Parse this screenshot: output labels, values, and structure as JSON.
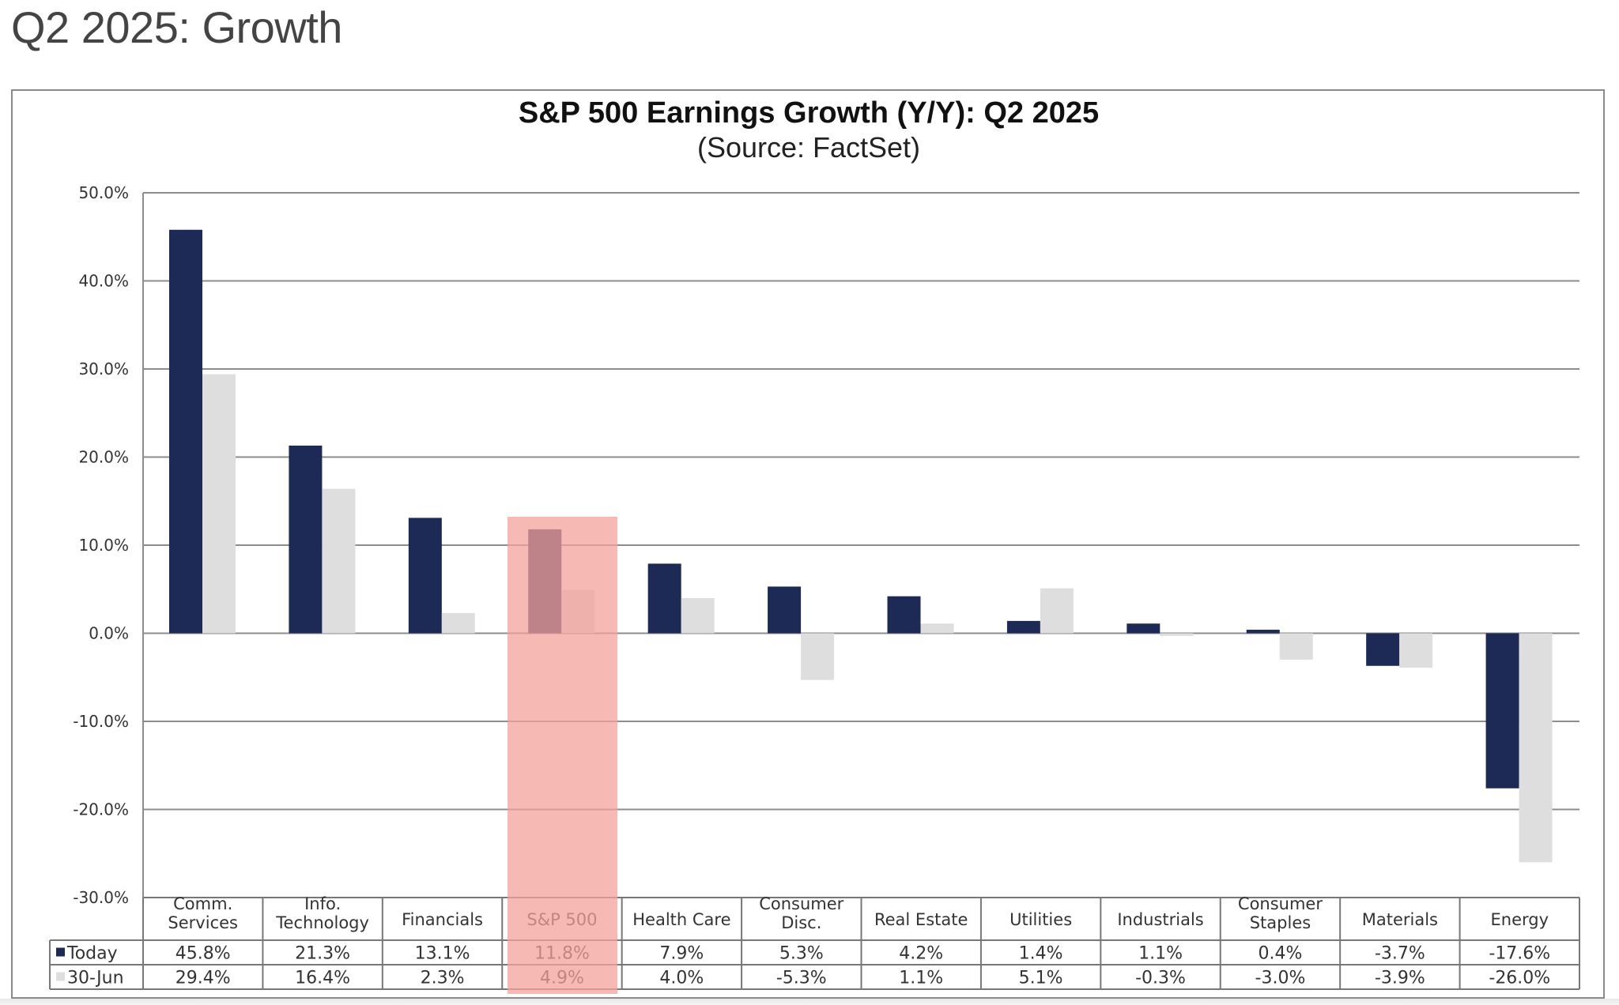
{
  "slide": {
    "title": "Q2 2025: Growth"
  },
  "chart_data": {
    "type": "bar",
    "title": "S&P 500 Earnings Growth (Y/Y): Q2 2025",
    "subtitle": "(Source: FactSet)",
    "xlabel": "",
    "ylabel": "",
    "ylim": [
      -30,
      50
    ],
    "yticks": [
      50,
      40,
      30,
      20,
      10,
      0,
      -10,
      -20,
      -30
    ],
    "ytick_labels": [
      "50.0%",
      "40.0%",
      "30.0%",
      "20.0%",
      "10.0%",
      "0.0%",
      "-10.0%",
      "-20.0%",
      "-30.0%"
    ],
    "grid": true,
    "legend_placement": "bottom-left (data table)",
    "categories": [
      [
        "Comm.",
        "Services"
      ],
      [
        "Info.",
        "Technology"
      ],
      [
        "Financials"
      ],
      [
        "S&P 500"
      ],
      [
        "Health Care"
      ],
      [
        "Consumer",
        "Disc."
      ],
      [
        "Real Estate"
      ],
      [
        "Utilities"
      ],
      [
        "Industrials"
      ],
      [
        "Consumer",
        "Staples"
      ],
      [
        "Materials"
      ],
      [
        "Energy"
      ]
    ],
    "highlighted_category": "S&P 500",
    "series": [
      {
        "name": "Today",
        "color": "#1c2a55",
        "values": [
          45.8,
          21.3,
          13.1,
          11.8,
          7.9,
          5.3,
          4.2,
          1.4,
          1.1,
          0.4,
          -3.7,
          -17.6
        ],
        "labels": [
          "45.8%",
          "21.3%",
          "13.1%",
          "11.8%",
          "7.9%",
          "5.3%",
          "4.2%",
          "1.4%",
          "1.1%",
          "0.4%",
          "-3.7%",
          "-17.6%"
        ]
      },
      {
        "name": "30-Jun",
        "color": "#dedede",
        "values": [
          29.4,
          16.4,
          2.3,
          4.9,
          4.0,
          -5.3,
          1.1,
          5.1,
          -0.3,
          -3.0,
          -3.9,
          -26.0
        ],
        "labels": [
          "29.4%",
          "16.4%",
          "2.3%",
          "4.9%",
          "4.0%",
          "-5.3%",
          "1.1%",
          "5.1%",
          "-0.3%",
          "-3.0%",
          "-3.9%",
          "-26.0%"
        ]
      }
    ]
  },
  "colors": {
    "highlight": "#f4a19a",
    "highlight_text": "#b0504a",
    "grid": "#8c8c8c"
  }
}
